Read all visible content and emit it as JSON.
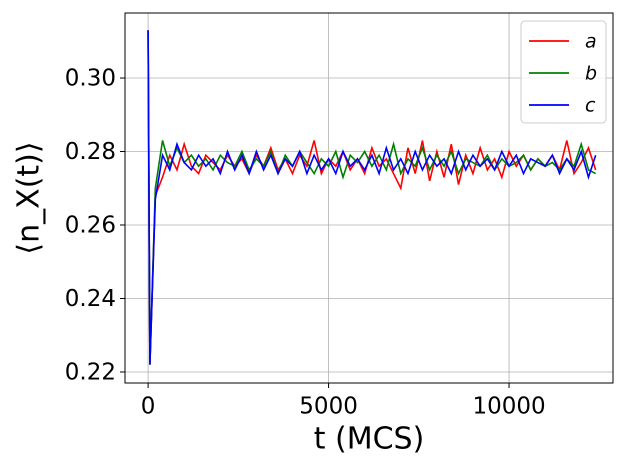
{
  "chart_data": {
    "type": "line",
    "xlabel": "t (MCS)",
    "ylabel": "⟨n_X(t)⟩",
    "xlim": [
      -640,
      12880
    ],
    "ylim": [
      0.217,
      0.3177
    ],
    "xticks": [
      0,
      5000,
      10000
    ],
    "yticks": [
      0.22,
      0.24,
      0.26,
      0.28,
      {
        "value": 0.3,
        "label": "0.30"
      }
    ],
    "grid": true,
    "legend": "upper right",
    "x": [
      0,
      50,
      200,
      400,
      600,
      800,
      1000,
      1200,
      1400,
      1600,
      1800,
      2000,
      2200,
      2400,
      2600,
      2800,
      3000,
      3200,
      3400,
      3600,
      3800,
      4000,
      4200,
      4400,
      4600,
      4800,
      5000,
      5200,
      5400,
      5600,
      5800,
      6000,
      6200,
      6400,
      6600,
      6800,
      7000,
      7200,
      7400,
      7600,
      7800,
      8000,
      8200,
      8400,
      8600,
      8800,
      9000,
      9200,
      9400,
      9600,
      9800,
      10000,
      10200,
      10400,
      10600,
      10800,
      11000,
      11200,
      11400,
      11600,
      11800,
      12000,
      12200,
      12400
    ],
    "series": [
      {
        "name": "a",
        "color": "#ff0000",
        "values": [
          0.313,
          0.222,
          0.268,
          0.273,
          0.279,
          0.275,
          0.282,
          0.276,
          0.274,
          0.279,
          0.277,
          0.275,
          0.279,
          0.276,
          0.278,
          0.274,
          0.279,
          0.276,
          0.281,
          0.275,
          0.278,
          0.274,
          0.279,
          0.276,
          0.283,
          0.274,
          0.278,
          0.276,
          0.28,
          0.275,
          0.278,
          0.274,
          0.281,
          0.276,
          0.278,
          0.274,
          0.27,
          0.281,
          0.274,
          0.283,
          0.272,
          0.28,
          0.273,
          0.282,
          0.271,
          0.279,
          0.274,
          0.281,
          0.275,
          0.278,
          0.273,
          0.28,
          0.276,
          0.279,
          0.275,
          0.278,
          0.276,
          0.279,
          0.275,
          0.283,
          0.274,
          0.277,
          0.281,
          0.275
        ]
      },
      {
        "name": "b",
        "color": "#008000",
        "values": [
          0.313,
          0.222,
          0.27,
          0.283,
          0.276,
          0.281,
          0.277,
          0.279,
          0.276,
          0.278,
          0.275,
          0.279,
          0.277,
          0.276,
          0.28,
          0.275,
          0.278,
          0.276,
          0.28,
          0.274,
          0.279,
          0.276,
          0.28,
          0.277,
          0.274,
          0.278,
          0.276,
          0.28,
          0.273,
          0.279,
          0.277,
          0.28,
          0.276,
          0.279,
          0.275,
          0.282,
          0.274,
          0.278,
          0.276,
          0.281,
          0.275,
          0.279,
          0.276,
          0.28,
          0.274,
          0.278,
          0.277,
          0.276,
          0.279,
          0.275,
          0.278,
          0.276,
          0.277,
          0.279,
          0.275,
          0.278,
          0.276,
          0.277,
          0.275,
          0.278,
          0.276,
          0.282,
          0.275,
          0.274
        ]
      },
      {
        "name": "c",
        "color": "#0000ff",
        "values": [
          0.313,
          0.222,
          0.267,
          0.279,
          0.275,
          0.282,
          0.277,
          0.275,
          0.279,
          0.276,
          0.278,
          0.274,
          0.28,
          0.275,
          0.279,
          0.274,
          0.28,
          0.275,
          0.279,
          0.274,
          0.278,
          0.276,
          0.28,
          0.274,
          0.279,
          0.275,
          0.278,
          0.274,
          0.28,
          0.276,
          0.278,
          0.275,
          0.279,
          0.274,
          0.281,
          0.275,
          0.278,
          0.274,
          0.28,
          0.275,
          0.279,
          0.276,
          0.278,
          0.274,
          0.28,
          0.275,
          0.279,
          0.276,
          0.278,
          0.275,
          0.28,
          0.276,
          0.279,
          0.274,
          0.278,
          0.277,
          0.276,
          0.279,
          0.274,
          0.278,
          0.275,
          0.28,
          0.273,
          0.279
        ]
      }
    ]
  }
}
